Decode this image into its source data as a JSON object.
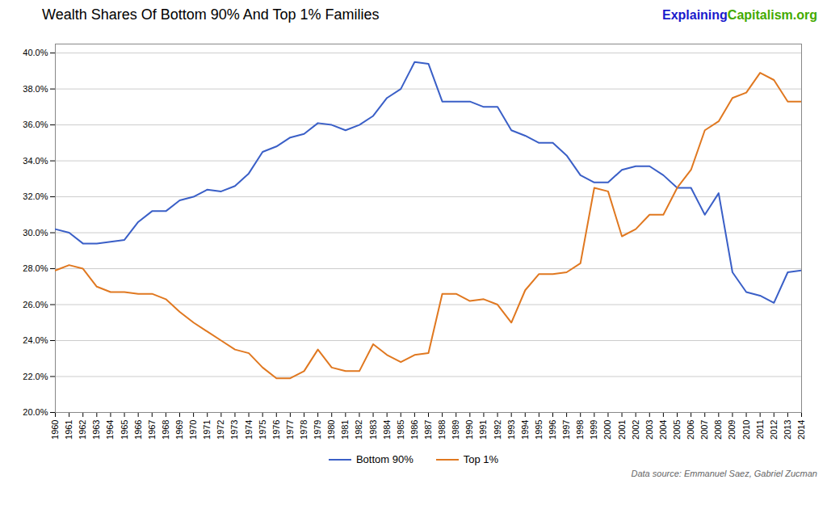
{
  "chart_data": {
    "type": "line",
    "title": "Wealth Shares Of Bottom 90% And Top 1% Families",
    "x": [
      1960,
      1961,
      1962,
      1963,
      1964,
      1965,
      1966,
      1967,
      1968,
      1969,
      1970,
      1971,
      1972,
      1973,
      1974,
      1975,
      1976,
      1977,
      1978,
      1979,
      1980,
      1981,
      1982,
      1983,
      1984,
      1985,
      1986,
      1987,
      1988,
      1989,
      1990,
      1991,
      1992,
      1993,
      1994,
      1995,
      1996,
      1997,
      1998,
      1999,
      2000,
      2001,
      2002,
      2003,
      2004,
      2005,
      2006,
      2007,
      2008,
      2009,
      2010,
      2011,
      2012,
      2013,
      2014
    ],
    "series": [
      {
        "name": "Bottom 90%",
        "color": "#3a5fc7",
        "values": [
          30.2,
          30.0,
          29.4,
          29.4,
          29.5,
          29.6,
          30.6,
          31.2,
          31.2,
          31.8,
          32.0,
          32.4,
          32.3,
          32.6,
          33.3,
          34.5,
          34.8,
          35.3,
          35.5,
          36.1,
          36.0,
          35.7,
          36.0,
          36.5,
          37.5,
          38.0,
          39.5,
          39.4,
          37.3,
          37.3,
          37.3,
          37.0,
          37.0,
          35.7,
          35.4,
          35.0,
          35.0,
          34.3,
          33.2,
          32.8,
          32.8,
          33.5,
          33.7,
          33.7,
          33.2,
          32.5,
          32.5,
          31.0,
          32.2,
          27.8,
          26.7,
          26.5,
          26.1,
          27.8,
          27.9
        ]
      },
      {
        "name": "Top 1%",
        "color": "#e07820",
        "values": [
          27.9,
          28.2,
          28.0,
          27.0,
          26.7,
          26.7,
          26.6,
          26.6,
          26.3,
          25.6,
          25.0,
          24.5,
          24.0,
          23.5,
          23.3,
          22.5,
          21.9,
          21.9,
          22.3,
          23.5,
          22.5,
          22.3,
          22.3,
          23.8,
          23.2,
          22.8,
          23.2,
          23.3,
          26.6,
          26.6,
          26.2,
          26.3,
          26.0,
          25.0,
          26.8,
          27.7,
          27.7,
          27.8,
          28.3,
          32.5,
          32.3,
          29.8,
          30.2,
          31.0,
          31.0,
          32.5,
          33.5,
          35.7,
          36.2,
          37.5,
          37.8,
          38.9,
          38.5,
          37.3,
          37.3
        ]
      }
    ],
    "xlim": [
      1960,
      2014
    ],
    "xticks": [
      1960,
      1961,
      1962,
      1963,
      1964,
      1965,
      1966,
      1967,
      1968,
      1969,
      1970,
      1971,
      1972,
      1973,
      1974,
      1975,
      1976,
      1977,
      1978,
      1979,
      1980,
      1981,
      1982,
      1983,
      1984,
      1985,
      1986,
      1987,
      1988,
      1989,
      1990,
      1991,
      1992,
      1993,
      1994,
      1995,
      1996,
      1997,
      1998,
      1999,
      2000,
      2001,
      2002,
      2003,
      2004,
      2005,
      2006,
      2007,
      2008,
      2009,
      2010,
      2011,
      2012,
      2013,
      2014
    ],
    "ylim": [
      20.0,
      40.5
    ],
    "yticks": [
      {
        "value": 20.0,
        "label": "20.0%"
      },
      {
        "value": 22.0,
        "label": "22.0%"
      },
      {
        "value": 24.0,
        "label": "24.0%"
      },
      {
        "value": 26.0,
        "label": "26.0%"
      },
      {
        "value": 28.0,
        "label": "28.0%"
      },
      {
        "value": 30.0,
        "label": "30.0%"
      },
      {
        "value": 32.0,
        "label": "32.0%"
      },
      {
        "value": 34.0,
        "label": "34.0%"
      },
      {
        "value": 36.0,
        "label": "36.0%"
      },
      {
        "value": 38.0,
        "label": "38.0%"
      },
      {
        "value": 40.0,
        "label": "40.0%"
      }
    ],
    "grid": true,
    "legend": "bottom",
    "annotations": [
      {
        "text": "Explaining",
        "color": "#1a1acc"
      },
      {
        "text": "Capitalism",
        "color": "#44aa00"
      },
      {
        "text": ".org",
        "color": "#44aa00"
      }
    ],
    "caption": "Data source: Emmanuel Saez, Gabriel Zucman"
  }
}
